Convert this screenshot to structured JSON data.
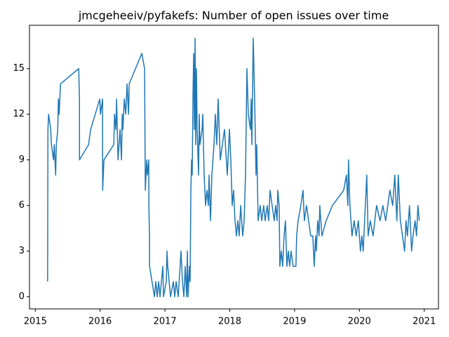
{
  "chart_data": {
    "type": "line",
    "title": "jmcgeheeiv/pyfakefs: Number of open issues over time",
    "color": "#1f77b4",
    "xlim": [
      2014.91,
      2021.22
    ],
    "xticks": [
      2015,
      2016,
      2017,
      2018,
      2019,
      2020,
      2021
    ],
    "ylim": [
      -0.8,
      17.85
    ],
    "yticks": [
      0,
      3,
      6,
      9,
      12,
      15
    ],
    "grid": false,
    "x": [
      2015.19,
      2015.195,
      2015.205,
      2015.238,
      2015.249,
      2015.281,
      2015.292,
      2015.314,
      2015.324,
      2015.346,
      2015.357,
      2015.368,
      2015.389,
      2015.67,
      2015.681,
      2015.682,
      2015.822,
      2015.854,
      2015.995,
      2016.005,
      2016.038,
      2016.039,
      2016.049,
      2016.059,
      2016.211,
      2016.222,
      2016.243,
      2016.254,
      2016.276,
      2016.308,
      2016.33,
      2016.341,
      2016.351,
      2016.373,
      2016.395,
      2016.416,
      2016.438,
      2016.449,
      2016.643,
      2016.686,
      2016.697,
      2016.719,
      2016.73,
      2016.751,
      2016.752,
      2016.762,
      2016.763,
      2016.838,
      2016.859,
      2016.881,
      2016.903,
      2016.924,
      2016.968,
      2016.978,
      2017.021,
      2017.032,
      2017.043,
      2017.065,
      2017.086,
      2017.13,
      2017.151,
      2017.173,
      2017.205,
      2017.248,
      2017.27,
      2017.292,
      2017.313,
      2017.335,
      2017.346,
      2017.357,
      2017.378,
      2017.389,
      2017.4,
      2017.411,
      2017.421,
      2017.432,
      2017.443,
      2017.454,
      2017.465,
      2017.475,
      2017.486,
      2017.497,
      2017.519,
      2017.529,
      2017.54,
      2017.573,
      2017.584,
      2017.594,
      2017.605,
      2017.627,
      2017.648,
      2017.67,
      2017.681,
      2017.703,
      2017.724,
      2017.757,
      2017.778,
      2017.8,
      2017.821,
      2017.854,
      2017.886,
      2017.919,
      2017.962,
      2017.995,
      2018.016,
      2018.038,
      2018.059,
      2018.081,
      2018.103,
      2018.124,
      2018.146,
      2018.168,
      2018.2,
      2018.222,
      2018.243,
      2018.265,
      2018.286,
      2018.319,
      2018.33,
      2018.341,
      2018.362,
      2018.384,
      2018.405,
      2018.416,
      2018.438,
      2018.47,
      2018.492,
      2018.524,
      2018.546,
      2018.578,
      2018.6,
      2018.622,
      2018.654,
      2018.686,
      2018.708,
      2018.73,
      2018.741,
      2018.762,
      2018.773,
      2018.795,
      2018.816,
      2018.838,
      2018.859,
      2018.881,
      2018.903,
      2018.924,
      2018.946,
      2018.978,
      2019.021,
      2019.032,
      2019.054,
      2019.097,
      2019.13,
      2019.151,
      2019.184,
      2019.216,
      2019.249,
      2019.281,
      2019.303,
      2019.324,
      2019.335,
      2019.357,
      2019.378,
      2019.389,
      2019.422,
      2019.487,
      2019.584,
      2019.757,
      2019.8,
      2019.822,
      2019.832,
      2019.854,
      2019.886,
      2019.919,
      2019.951,
      2019.984,
      2020.016,
      2020.038,
      2020.059,
      2020.114,
      2020.135,
      2020.168,
      2020.211,
      2020.265,
      2020.319,
      2020.362,
      2020.405,
      2020.47,
      2020.514,
      2020.546,
      2020.578,
      2020.6,
      2020.632,
      2020.665,
      2020.697,
      2020.719,
      2020.741,
      2020.773,
      2020.805,
      2020.827,
      2020.859,
      2020.881,
      2020.903,
      2020.924
    ],
    "values": [
      1,
      11,
      12,
      11,
      10,
      9,
      10,
      8,
      10,
      11,
      13,
      12,
      14,
      15,
      13,
      9,
      10,
      11,
      13,
      12,
      13,
      7,
      8,
      9,
      10,
      12,
      11,
      13,
      9,
      11,
      9,
      12,
      11,
      13,
      12,
      14,
      12,
      14,
      16,
      15,
      7,
      9,
      8,
      9,
      6,
      4,
      2,
      0,
      1,
      0,
      1,
      0,
      2,
      0,
      1,
      3,
      2,
      1,
      0,
      1,
      0,
      1,
      0,
      3,
      1,
      0,
      2,
      0,
      3,
      0,
      2,
      1,
      7,
      9,
      8,
      13,
      16,
      11,
      17,
      10,
      15,
      11,
      8,
      12,
      10,
      11,
      12,
      10,
      8,
      6,
      7,
      6,
      8,
      5,
      8,
      10,
      12,
      10,
      13,
      9,
      10,
      11,
      8,
      11,
      9,
      6,
      7,
      5,
      4,
      5,
      4,
      6,
      4,
      5,
      8,
      15,
      12,
      11,
      13,
      10,
      17,
      13,
      8,
      10,
      5,
      6,
      5,
      6,
      5,
      6,
      5,
      7,
      6,
      5,
      6,
      5,
      7,
      6,
      2,
      3,
      2,
      4,
      5,
      2,
      3,
      2,
      3,
      2,
      2,
      4,
      5,
      6,
      7,
      5,
      6,
      5,
      4,
      4,
      2,
      4,
      3,
      5,
      4,
      6,
      4,
      5,
      6,
      7,
      8,
      6,
      9,
      6,
      4,
      5,
      4,
      5,
      3,
      4,
      3,
      8,
      4,
      5,
      4,
      6,
      5,
      6,
      5,
      7,
      6,
      8,
      5,
      8,
      5,
      4,
      3,
      5,
      4,
      6,
      3,
      4,
      5,
      4,
      6,
      5
    ]
  }
}
